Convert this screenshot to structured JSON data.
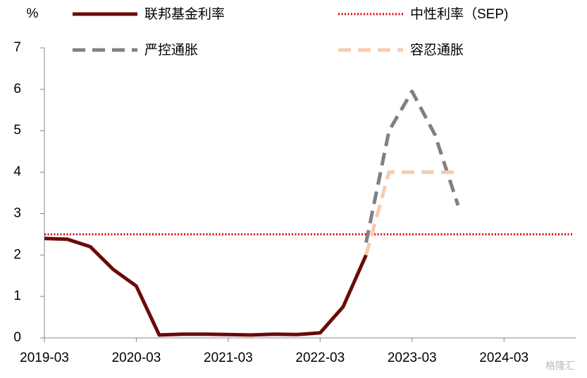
{
  "chart_data": {
    "type": "line",
    "y_label": "%",
    "watermark": "格隆汇",
    "xlim": [
      "2019-03",
      "2024-12"
    ],
    "xticks": [
      "2019-03",
      "2020-03",
      "2021-03",
      "2022-03",
      "2023-03",
      "2024-03"
    ],
    "ylim": [
      0,
      7
    ],
    "yticks": [
      0,
      1,
      2,
      3,
      4,
      5,
      6,
      7
    ],
    "series": [
      {
        "name": "联邦基金利率",
        "color": "#6b0a0a",
        "style": "solid",
        "x": [
          "2019-03",
          "2019-06",
          "2019-09",
          "2019-12",
          "2020-03",
          "2020-06",
          "2020-09",
          "2020-12",
          "2021-03",
          "2021-06",
          "2021-09",
          "2021-12",
          "2022-03",
          "2022-06",
          "2022-09"
        ],
        "values": [
          2.4,
          2.38,
          2.2,
          1.65,
          1.25,
          0.07,
          0.09,
          0.09,
          0.08,
          0.07,
          0.09,
          0.08,
          0.12,
          0.75,
          2.0
        ]
      },
      {
        "name": "中性利率（SEP)",
        "color": "#e00000",
        "style": "dotted",
        "x": [
          "2019-03",
          "2024-12"
        ],
        "values": [
          2.5,
          2.5
        ]
      },
      {
        "name": "严控通胀",
        "color": "#808080",
        "style": "dashed",
        "x": [
          "2022-09",
          "2022-12",
          "2023-03",
          "2023-06",
          "2023-09"
        ],
        "values": [
          2.3,
          5.0,
          5.95,
          4.9,
          3.2
        ]
      },
      {
        "name": "容忍通胀",
        "color": "#f8cbad",
        "style": "dashed",
        "x": [
          "2022-09",
          "2022-12",
          "2023-03",
          "2023-06",
          "2023-09"
        ],
        "values": [
          2.0,
          4.0,
          4.0,
          4.0,
          4.0
        ]
      }
    ]
  }
}
